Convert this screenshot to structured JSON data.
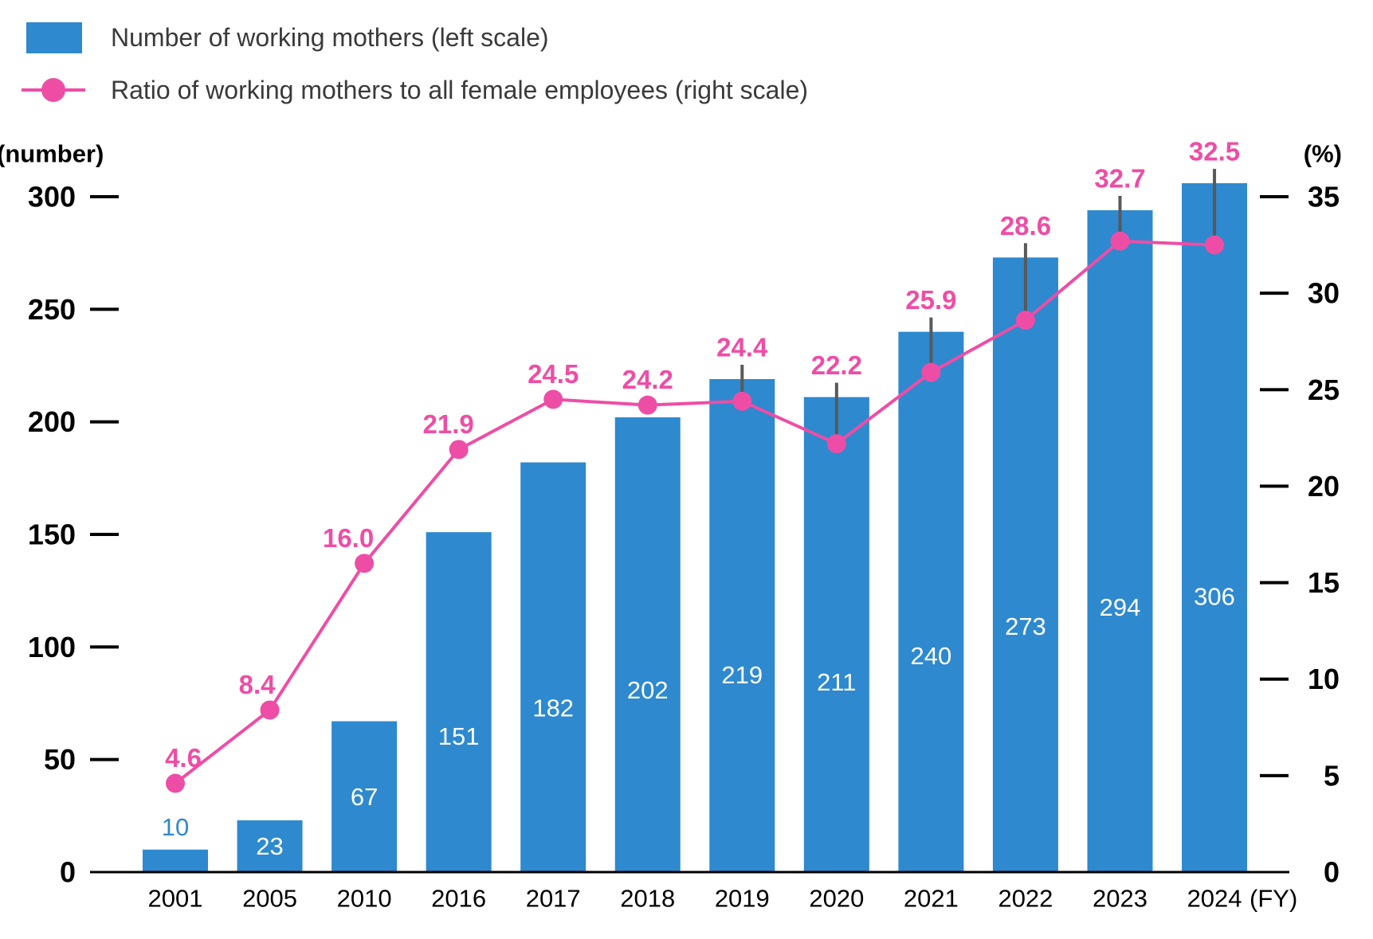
{
  "chart_data": {
    "type": "bar+line",
    "categories": [
      "2001",
      "2005",
      "2010",
      "2016",
      "2017",
      "2018",
      "2019",
      "2020",
      "2021",
      "2022",
      "2023",
      "2024"
    ],
    "series": [
      {
        "name": "Number of working mothers (left scale)",
        "type": "bar",
        "axis": "left",
        "values": [
          10,
          23,
          67,
          151,
          182,
          202,
          219,
          211,
          240,
          273,
          294,
          306
        ]
      },
      {
        "name": "Ratio of working mothers to all female employees (right scale)",
        "type": "line",
        "axis": "right",
        "values": [
          4.6,
          8.4,
          16.0,
          21.9,
          24.5,
          24.2,
          24.4,
          22.2,
          25.9,
          28.6,
          32.7,
          32.5
        ]
      }
    ],
    "left_axis": {
      "label": "(number)",
      "min": 0,
      "max": 300,
      "ticks": [
        0,
        50,
        100,
        150,
        200,
        250,
        300
      ]
    },
    "right_axis": {
      "label": "(%)",
      "min": 0,
      "max": 35,
      "ticks": [
        0,
        5,
        10,
        15,
        20,
        25,
        30,
        35
      ]
    },
    "x_axis_suffix": "(FY)",
    "legend_position": "top-left",
    "grid": false
  },
  "colors": {
    "bar": "#2E89CE",
    "line": "#EE4DA6",
    "leader_line": "#58595B",
    "bar_label_inside": "#FFFFFF",
    "bar_label_outside": "#2E89CE",
    "axis_text": "#000000",
    "legend_text": "#3A3A3A"
  }
}
